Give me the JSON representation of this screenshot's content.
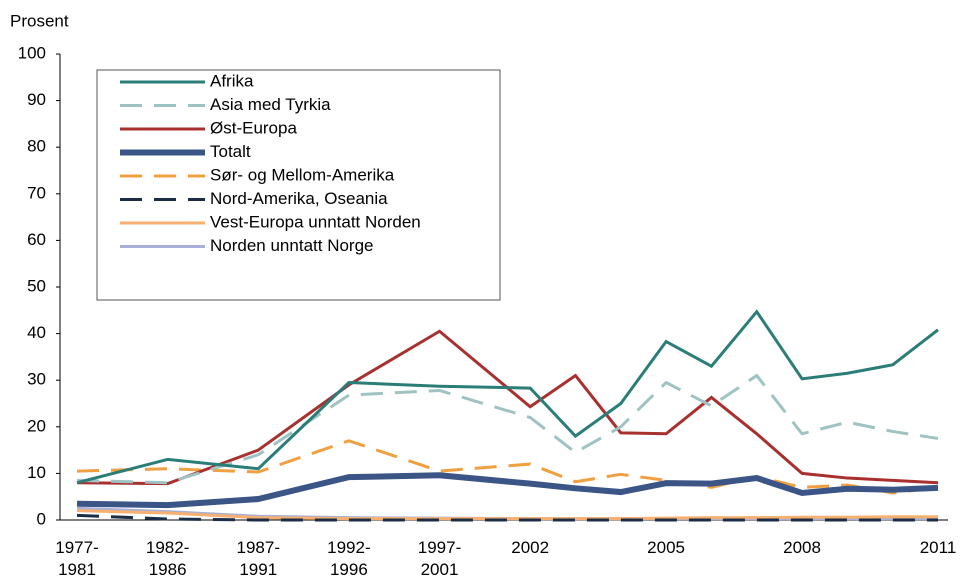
{
  "chart_data": {
    "type": "line",
    "ylabel": "Prosent",
    "categories": [
      "1977-\n1981",
      "1982-\n1986",
      "1987-\n1991",
      "1992-\n1996",
      "1997-\n2001",
      "2002",
      null,
      null,
      "2005",
      null,
      null,
      "2008",
      null,
      null,
      "2011"
    ],
    "ylim": [
      0,
      100
    ],
    "yticks": [
      0,
      10,
      20,
      30,
      40,
      50,
      60,
      70,
      80,
      90,
      100
    ],
    "legend": "upper left",
    "series": [
      {
        "name": "Afrika",
        "color": "#2b7d78",
        "dash": false,
        "linewidth": 3,
        "values": [
          8,
          13,
          11,
          29.5,
          28.7,
          28.3,
          18,
          25,
          38.3,
          33,
          44.7,
          30.3,
          31.5,
          33.3,
          40.8
        ]
      },
      {
        "name": "Asia med Tyrkia",
        "color": "#9fc3c3",
        "dash": true,
        "linewidth": 3,
        "values": [
          8.5,
          8,
          14,
          26.8,
          27.8,
          22,
          14.5,
          20,
          29.5,
          24.5,
          31,
          18.5,
          21,
          19,
          17.5
        ]
      },
      {
        "name": "Øst-Europa",
        "color": "#a8302f",
        "dash": false,
        "linewidth": 3,
        "values": [
          8,
          7.8,
          15,
          29,
          40.5,
          24.3,
          31,
          18.7,
          18.5,
          26.3,
          18.5,
          10,
          9,
          8.5,
          8
        ]
      },
      {
        "name": "Totalt",
        "color": "#3a5586",
        "dash": false,
        "linewidth": 6,
        "values": [
          3.5,
          3.2,
          4.5,
          9.2,
          9.6,
          7.8,
          6.8,
          6,
          7.9,
          7.8,
          9,
          5.8,
          6.7,
          6.5,
          6.9
        ]
      },
      {
        "name": "Sør- og Mellom-Amerika",
        "color": "#f0a040",
        "dash": true,
        "linewidth": 3,
        "values": [
          10.5,
          11,
          10.3,
          17,
          10.5,
          12,
          8.2,
          9.8,
          8.5,
          7,
          9.3,
          7,
          7.5,
          5.8,
          7
        ]
      },
      {
        "name": "Nord-Amerika, Oseania",
        "color": "#1b2e45",
        "dash": true,
        "linewidth": 3,
        "values": [
          1,
          0.2,
          0,
          0,
          0,
          0,
          0,
          0,
          0,
          0,
          0,
          0,
          0,
          0,
          0
        ]
      },
      {
        "name": "Vest-Europa unntatt Norden",
        "color": "#f8b070",
        "dash": false,
        "linewidth": 3,
        "values": [
          2,
          1.5,
          0.5,
          0.3,
          0.3,
          0.3,
          0.3,
          0.3,
          0.4,
          0.5,
          0.5,
          0.6,
          0.6,
          0.7,
          0.7
        ]
      },
      {
        "name": "Norden unntatt Norge",
        "color": "#a8b0d8",
        "dash": false,
        "linewidth": 3,
        "values": [
          2.5,
          1.8,
          0.8,
          0.5,
          0.4,
          0.3,
          0.3,
          0.3,
          0.3,
          0.3,
          0.3,
          0.3,
          0.3,
          0.3,
          0.3
        ]
      }
    ]
  }
}
